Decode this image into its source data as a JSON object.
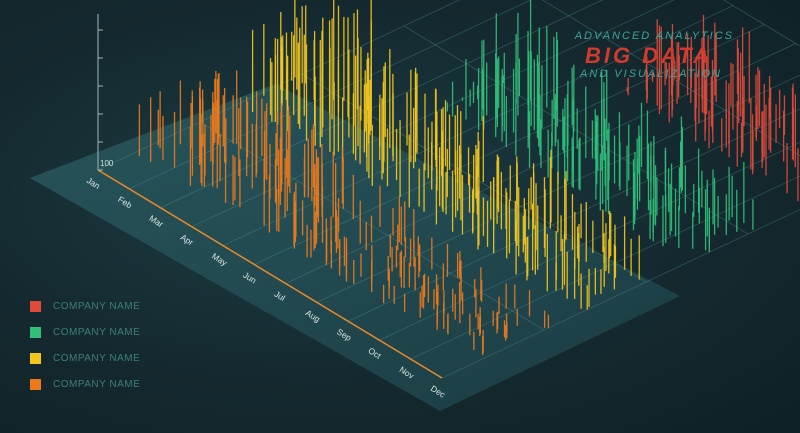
{
  "header": {
    "line1": "ADVANCED ANALYTICS",
    "line2": "BIG DATA",
    "line3": "AND VISUALIZATION"
  },
  "legend": [
    {
      "label": "COMPANY NAME",
      "color": "#e04a3b"
    },
    {
      "label": "COMPANY NAME",
      "color": "#2fbf7a"
    },
    {
      "label": "COMPANY NAME",
      "color": "#f2c61e"
    },
    {
      "label": "COMPANY NAME",
      "color": "#ec7a1c"
    }
  ],
  "chart_data": {
    "type": "bar",
    "style": "3d-isometric",
    "categories": [
      "Jan",
      "Feb",
      "Mar",
      "Apr",
      "May",
      "Jun",
      "Jul",
      "Aug",
      "Sep",
      "Oct",
      "Nov",
      "Dec"
    ],
    "y_tick_label": "100",
    "ylim": [
      0,
      100
    ],
    "grid": true,
    "legend_position": "bottom-left",
    "series": [
      {
        "color": "#e04a3b",
        "values": [
          0,
          0,
          0,
          0,
          0,
          0,
          72,
          60,
          50,
          58,
          55,
          60
        ]
      },
      {
        "color": "#2fbf7a",
        "values": [
          0,
          0,
          0,
          0,
          82,
          70,
          58,
          55,
          62,
          56,
          50,
          48
        ]
      },
      {
        "color": "#f2c61e",
        "values": [
          62,
          80,
          90,
          86,
          72,
          66,
          54,
          48,
          60,
          52,
          44,
          36
        ]
      },
      {
        "color": "#ec7a1c",
        "values": [
          44,
          62,
          70,
          64,
          56,
          48,
          38,
          30,
          28,
          26,
          22,
          18
        ]
      }
    ]
  }
}
